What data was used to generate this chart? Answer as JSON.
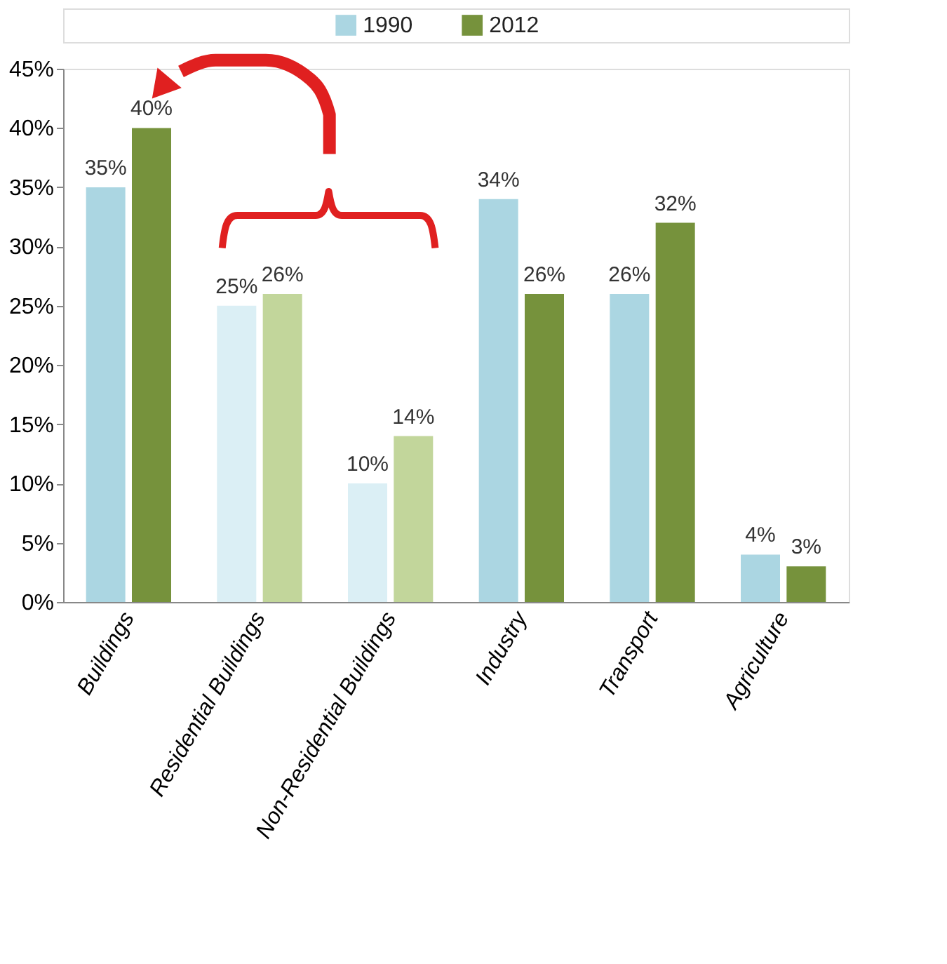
{
  "chart_data": {
    "type": "bar",
    "categories": [
      "Buildings",
      "Residential Buildings",
      "Non-Residential Buildings",
      "Industry",
      "Transport",
      "Agriculture"
    ],
    "series": [
      {
        "name": "1990",
        "color": "#abd6e2",
        "colors": [
          "#abd6e2",
          "#dbeff5",
          "#dbeff5",
          "#abd6e2",
          "#abd6e2",
          "#abd6e2"
        ],
        "values": [
          35,
          25,
          10,
          34,
          26,
          4
        ],
        "value_labels": [
          "35%",
          "25%",
          "10%",
          "34%",
          "26%",
          "4%"
        ]
      },
      {
        "name": "2012",
        "color": "#76923c",
        "colors": [
          "#76923c",
          "#c2d69b",
          "#c2d69b",
          "#76923c",
          "#76923c",
          "#76923c"
        ],
        "values": [
          40,
          26,
          14,
          26,
          32,
          3
        ],
        "value_labels": [
          "40%",
          "26%",
          "14%",
          "26%",
          "32%",
          "3%"
        ]
      }
    ],
    "ylim": [
      0,
      45
    ],
    "yticks": [
      {
        "value": 0,
        "label": "0%"
      },
      {
        "value": 5,
        "label": "5%"
      },
      {
        "value": 10,
        "label": "10%"
      },
      {
        "value": 15,
        "label": "15%"
      },
      {
        "value": 20,
        "label": "20%"
      },
      {
        "value": 25,
        "label": "25%"
      },
      {
        "value": 30,
        "label": "30%"
      },
      {
        "value": 35,
        "label": "35%"
      },
      {
        "value": 40,
        "label": "40%"
      },
      {
        "value": 45,
        "label": "45%"
      }
    ],
    "grid": false,
    "legend": "top"
  }
}
